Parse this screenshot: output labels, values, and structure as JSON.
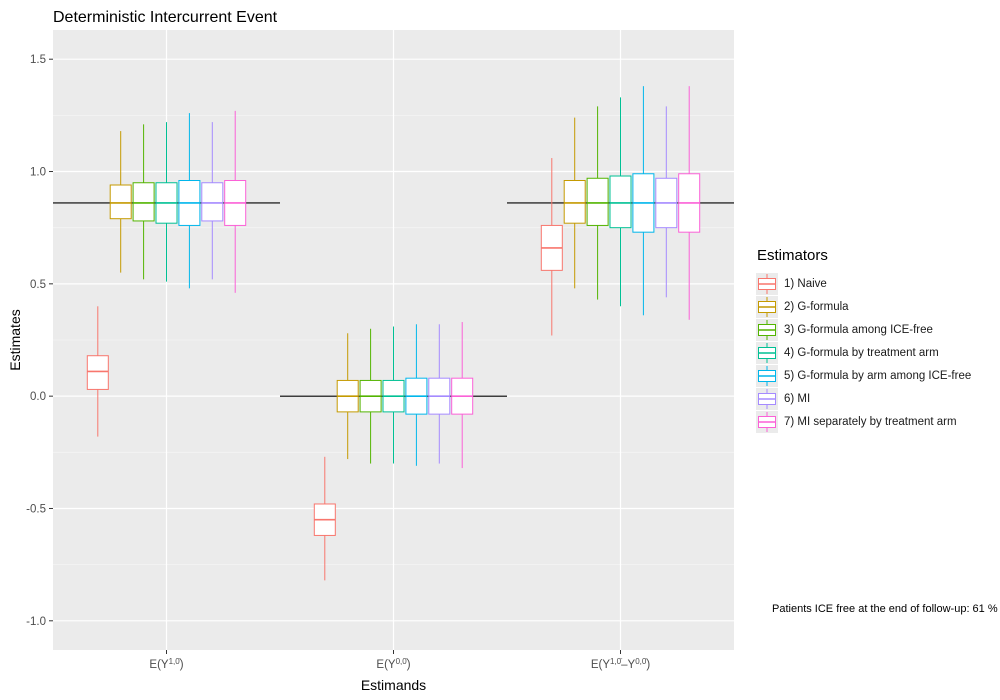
{
  "chart_data": {
    "type": "boxplot",
    "title": "Deterministic Intercurrent Event",
    "xlabel": "Estimands",
    "ylabel": "Estimates",
    "ylim": [
      -1.13,
      1.63
    ],
    "yticks": [
      1.5,
      1.0,
      0.5,
      0.0,
      -0.5,
      -1.0
    ],
    "ytick_labels": [
      "1.5",
      "1.0",
      "0.5",
      "0.0",
      "-0.5",
      "-1.0"
    ],
    "grid": true,
    "legend_title": "Estimators",
    "legend_position": "right",
    "categories": [
      {
        "base": "E(Y",
        "sup": "1,0̄",
        "tail": ")"
      },
      {
        "base": "E(Y",
        "sup": "0,0̄",
        "tail": ")"
      },
      {
        "base": "E(Y",
        "sup": "1,0̄",
        "mid": "–Y",
        "sup2": "0,0̄",
        "tail": ")"
      }
    ],
    "true_values": [
      0.86,
      0.0,
      0.86
    ],
    "series": [
      {
        "name": "1) Naive",
        "color": "#f8766d",
        "boxes": [
          [
            -0.18,
            0.03,
            0.11,
            0.18,
            0.4
          ],
          [
            -0.82,
            -0.62,
            -0.55,
            -0.48,
            -0.27
          ],
          [
            0.27,
            0.56,
            0.66,
            0.76,
            1.06
          ]
        ]
      },
      {
        "name": "2) G-formula",
        "color": "#c49a00",
        "boxes": [
          [
            0.55,
            0.79,
            0.86,
            0.94,
            1.18
          ],
          [
            -0.28,
            -0.07,
            0.0,
            0.07,
            0.28
          ],
          [
            0.48,
            0.77,
            0.86,
            0.96,
            1.24
          ]
        ]
      },
      {
        "name": "3) G-formula among ICE-free",
        "color": "#53b400",
        "boxes": [
          [
            0.52,
            0.78,
            0.86,
            0.95,
            1.21
          ],
          [
            -0.3,
            -0.07,
            0.0,
            0.07,
            0.3
          ],
          [
            0.43,
            0.76,
            0.86,
            0.97,
            1.29
          ]
        ]
      },
      {
        "name": "4) G-formula by treatment arm",
        "color": "#00c094",
        "boxes": [
          [
            0.51,
            0.77,
            0.86,
            0.95,
            1.22
          ],
          [
            -0.3,
            -0.07,
            0.0,
            0.07,
            0.31
          ],
          [
            0.4,
            0.75,
            0.86,
            0.98,
            1.33
          ]
        ]
      },
      {
        "name": "5) G-formula by arm among ICE-free",
        "color": "#00b6eb",
        "boxes": [
          [
            0.48,
            0.76,
            0.86,
            0.96,
            1.26
          ],
          [
            -0.31,
            -0.08,
            0.0,
            0.08,
            0.32
          ],
          [
            0.36,
            0.73,
            0.86,
            0.99,
            1.38
          ]
        ]
      },
      {
        "name": "6) MI",
        "color": "#a58aff",
        "boxes": [
          [
            0.52,
            0.78,
            0.86,
            0.95,
            1.22
          ],
          [
            -0.3,
            -0.08,
            0.0,
            0.08,
            0.32
          ],
          [
            0.44,
            0.75,
            0.86,
            0.97,
            1.29
          ]
        ]
      },
      {
        "name": "7) MI separately by treatment arm",
        "color": "#fb61d7",
        "boxes": [
          [
            0.46,
            0.76,
            0.86,
            0.96,
            1.27
          ],
          [
            -0.32,
            -0.08,
            0.0,
            0.08,
            0.33
          ],
          [
            0.34,
            0.73,
            0.86,
            0.99,
            1.38
          ]
        ]
      }
    ],
    "annotation": "Patients ICE free at the end of follow-up: 61 %"
  }
}
